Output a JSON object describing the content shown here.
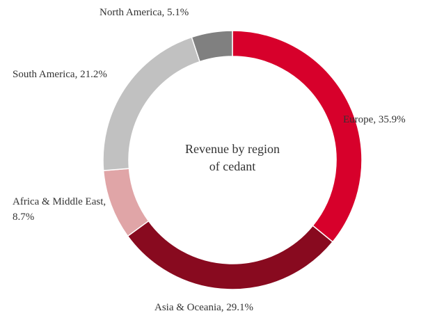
{
  "chart_data": {
    "type": "donut",
    "title": "Revenue by region of cedant",
    "values": [
      35.9,
      29.1,
      8.7,
      21.2,
      5.1
    ],
    "value_labels": [
      "Europe, 35.9%",
      "Asia & Oceania, 29.1%",
      "Africa & Middle East, 8.7%",
      "South America, 21.2%",
      "North America, 5.1%"
    ],
    "colors": [
      "#d7002b",
      "#880a1f",
      "#e0a5a7",
      "#c1c1c1",
      "#808080"
    ]
  }
}
